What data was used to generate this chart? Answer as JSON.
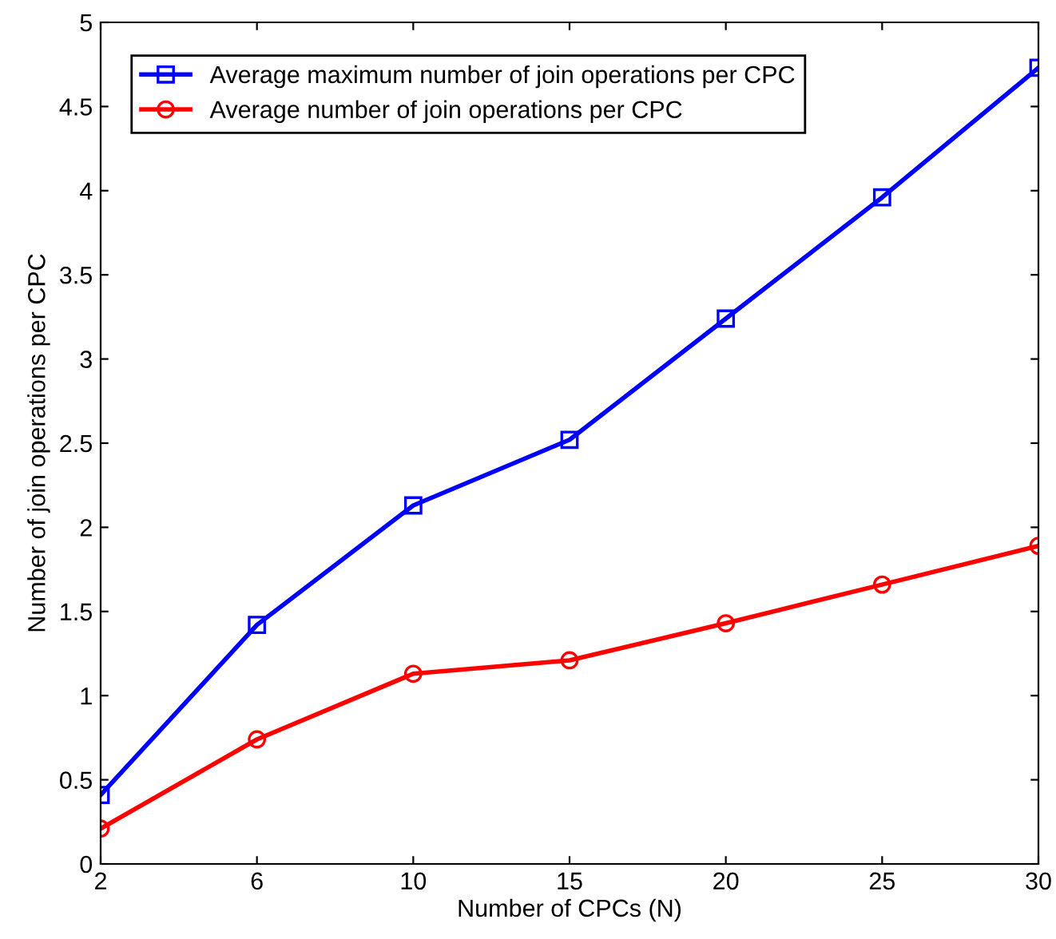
{
  "chart_data": {
    "type": "line",
    "xlabel": "Number of CPCs (N)",
    "ylabel": "Number of join operations per CPC",
    "categories": [
      "2",
      "6",
      "10",
      "15",
      "20",
      "25",
      "30"
    ],
    "series": [
      {
        "name": "Average maximum number of join operations per CPC",
        "color": "#0000ff",
        "marker": "square",
        "values": [
          0.41,
          1.42,
          2.13,
          2.52,
          3.24,
          3.96,
          4.73
        ]
      },
      {
        "name": "Average number of join operations per CPC",
        "color": "#ff0000",
        "marker": "circle",
        "values": [
          0.21,
          0.74,
          1.13,
          1.21,
          1.43,
          1.66,
          1.89
        ]
      }
    ],
    "ylim": [
      0,
      5
    ],
    "yticks": [
      0,
      0.5,
      1,
      1.5,
      2,
      2.5,
      3,
      3.5,
      4,
      4.5,
      5
    ],
    "grid": false,
    "legend": "top left",
    "line_style": "solid"
  }
}
